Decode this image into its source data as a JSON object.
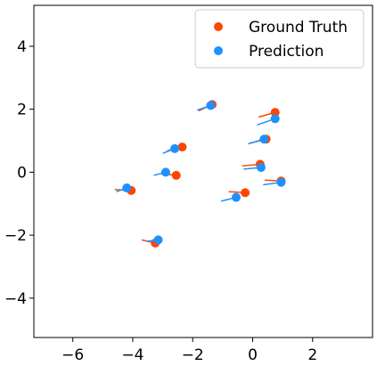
{
  "chart_data": {
    "type": "scatter",
    "xlim": [
      -7.3,
      4.0
    ],
    "ylim": [
      -5.25,
      5.3
    ],
    "xticks": [
      -6,
      -4,
      -2,
      0,
      2
    ],
    "yticks": [
      4,
      2,
      0,
      -2,
      -4
    ],
    "xtick_labels": [
      "−6",
      "−4",
      "−2",
      "0",
      "2"
    ],
    "ytick_labels": [
      "4",
      "2",
      "0",
      "−2",
      "−4"
    ],
    "grid": false,
    "legend_position": "top-right",
    "series": [
      {
        "name": "Ground Truth",
        "color": "#ff4500",
        "points": [
          {
            "x": -1.35,
            "y": 2.15,
            "tx": -1.8,
            "ty": 1.95
          },
          {
            "x": 0.75,
            "y": 1.9,
            "tx": 0.2,
            "ty": 1.75
          },
          {
            "x": 0.45,
            "y": 1.05,
            "tx": -0.1,
            "ty": 0.92
          },
          {
            "x": -2.35,
            "y": 0.8,
            "tx": -2.85,
            "ty": 0.68
          },
          {
            "x": 0.25,
            "y": 0.25,
            "tx": -0.35,
            "ty": 0.2
          },
          {
            "x": -2.55,
            "y": -0.1,
            "tx": -3.05,
            "ty": -0.05
          },
          {
            "x": 0.95,
            "y": -0.28,
            "tx": 0.4,
            "ty": -0.25
          },
          {
            "x": -4.05,
            "y": -0.58,
            "tx": -4.6,
            "ty": -0.55
          },
          {
            "x": -0.25,
            "y": -0.65,
            "tx": -0.8,
            "ty": -0.62
          },
          {
            "x": -3.25,
            "y": -2.25,
            "tx": -3.7,
            "ty": -2.15
          }
        ]
      },
      {
        "name": "Prediction",
        "color": "#1e90ff",
        "points": [
          {
            "x": -1.4,
            "y": 2.12,
            "tx": -1.85,
            "ty": 1.97
          },
          {
            "x": 0.75,
            "y": 1.7,
            "tx": 0.15,
            "ty": 1.5
          },
          {
            "x": 0.38,
            "y": 1.05,
            "tx": -0.15,
            "ty": 0.9
          },
          {
            "x": -2.6,
            "y": 0.75,
            "tx": -3.0,
            "ty": 0.6
          },
          {
            "x": 0.28,
            "y": 0.15,
            "tx": -0.3,
            "ty": 0.1
          },
          {
            "x": -2.9,
            "y": 0.0,
            "tx": -3.3,
            "ty": -0.1
          },
          {
            "x": 0.95,
            "y": -0.32,
            "tx": 0.35,
            "ty": -0.4
          },
          {
            "x": -4.2,
            "y": -0.5,
            "tx": -4.55,
            "ty": -0.62
          },
          {
            "x": -0.55,
            "y": -0.8,
            "tx": -1.05,
            "ty": -0.92
          },
          {
            "x": -3.15,
            "y": -2.15,
            "tx": -3.55,
            "ty": -2.2
          }
        ]
      }
    ]
  }
}
